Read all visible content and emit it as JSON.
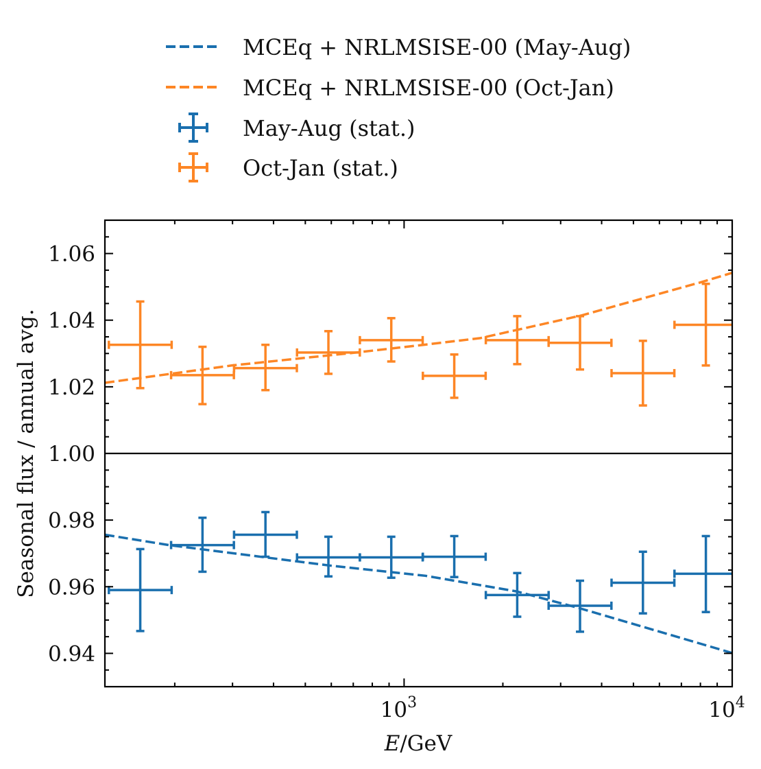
{
  "chart_data": {
    "type": "scatter",
    "title": "",
    "xlabel_italic": "E",
    "xlabel_rest": "/GeV",
    "xlabel": "E/GeV",
    "ylabel": "Seasonal flux / annual avg.",
    "xscale": "log",
    "xlim": [
      122.5,
      10000
    ],
    "ylim": [
      0.93,
      1.07
    ],
    "reference_line": 1.0,
    "grid": false,
    "legend_position": "above-plot",
    "x_ticks": [
      {
        "value": 1000,
        "base": "10",
        "exp": "3"
      },
      {
        "value": 10000,
        "base": "10",
        "exp": "4"
      }
    ],
    "y_ticks": [
      {
        "value": 0.94,
        "label": "0.94"
      },
      {
        "value": 0.96,
        "label": "0.96"
      },
      {
        "value": 0.98,
        "label": "0.98"
      },
      {
        "value": 1.0,
        "label": "1.00"
      },
      {
        "value": 1.02,
        "label": "1.02"
      },
      {
        "value": 1.04,
        "label": "1.04"
      },
      {
        "value": 1.06,
        "label": "1.06"
      }
    ],
    "bin_half_width_decades": 0.0957,
    "series": [
      {
        "name": "MCEq + NRLMSISE-00 (May-Aug)",
        "kind": "model-line",
        "color": "#1a6fae",
        "x": [
          122.5,
          192,
          378,
          600,
          1161,
          2203,
          3413,
          10000
        ],
        "y": [
          0.9756,
          0.9725,
          0.9688,
          0.9663,
          0.9633,
          0.9586,
          0.9536,
          0.9401
        ]
      },
      {
        "name": "MCEq + NRLMSISE-00 (Oct-Jan)",
        "kind": "model-line",
        "color": "#fd8625",
        "x": [
          122.5,
          298,
          717,
          1144,
          1707,
          3467,
          7980,
          10000
        ],
        "y": [
          1.0212,
          1.0264,
          1.0303,
          1.0326,
          1.0346,
          1.0414,
          1.0513,
          1.0542
        ]
      },
      {
        "name": "May-Aug (stat.)",
        "kind": "errorbar",
        "color": "#1a6fae",
        "x": [
          157,
          243,
          378,
          588,
          914,
          1422,
          2212,
          3437,
          5345,
          8313
        ],
        "y": [
          0.959,
          0.9725,
          0.9756,
          0.9688,
          0.9688,
          0.969,
          0.9575,
          0.9543,
          0.9612,
          0.9639
        ],
        "yerr_high": [
          0.9713,
          0.9807,
          0.9824,
          0.975,
          0.975,
          0.9752,
          0.9641,
          0.9618,
          0.9705,
          0.9752
        ],
        "yerr_low": [
          0.9467,
          0.9645,
          0.969,
          0.9631,
          0.9627,
          0.9629,
          0.951,
          0.9465,
          0.952,
          0.9524
        ]
      },
      {
        "name": "Oct-Jan (stat.)",
        "kind": "errorbar",
        "color": "#fd8625",
        "x": [
          157,
          243,
          378,
          588,
          914,
          1422,
          2212,
          3437,
          5345,
          8313
        ],
        "y": [
          1.0326,
          1.0235,
          1.0256,
          1.0303,
          1.034,
          1.0233,
          1.034,
          1.0332,
          1.0241,
          1.0386
        ],
        "yerr_high": [
          1.0456,
          1.032,
          1.0326,
          1.0367,
          1.0406,
          1.0297,
          1.0412,
          1.0412,
          1.0338,
          1.0509
        ],
        "yerr_low": [
          1.0196,
          1.0148,
          1.019,
          1.0239,
          1.0276,
          1.0167,
          1.0268,
          1.0252,
          1.0144,
          1.0264
        ]
      }
    ],
    "legend": [
      {
        "label": "MCEq + NRLMSISE-00 (May-Aug)",
        "kind": "dashed",
        "color": "#1a6fae"
      },
      {
        "label": "MCEq + NRLMSISE-00 (Oct-Jan)",
        "kind": "dashed",
        "color": "#fd8625"
      },
      {
        "label": "May-Aug (stat.)",
        "kind": "errorbar",
        "color": "#1a6fae"
      },
      {
        "label": "Oct-Jan (stat.)",
        "kind": "errorbar",
        "color": "#fd8625"
      }
    ]
  }
}
